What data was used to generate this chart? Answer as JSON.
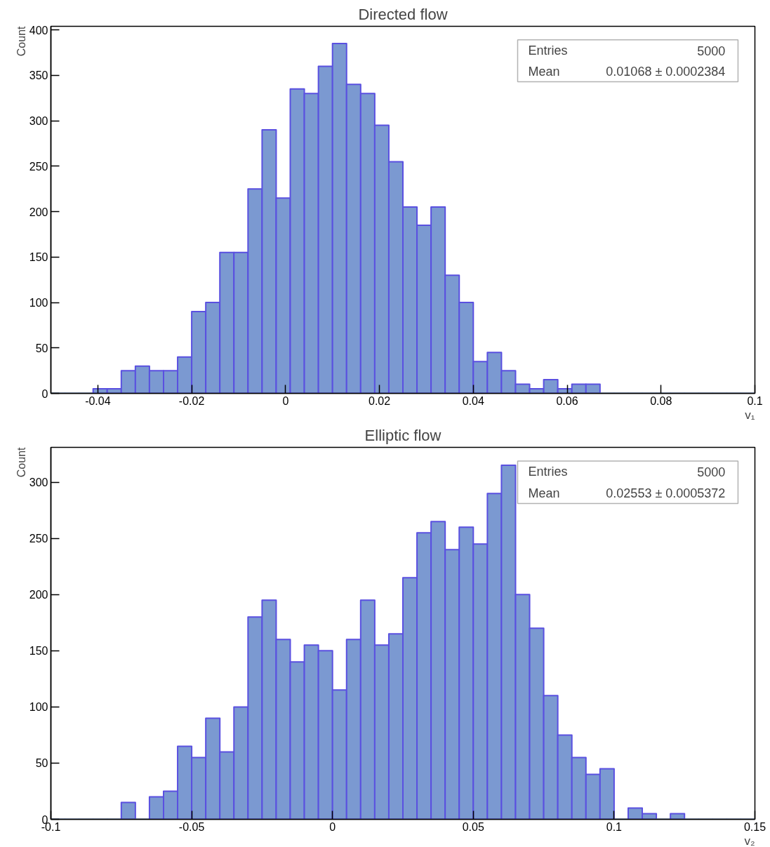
{
  "chart_data": [
    {
      "type": "histogram",
      "title": "Directed flow",
      "xlabel": "v₁",
      "ylabel": "Count",
      "color": "#7b99d1",
      "bins": [
        -0.05,
        -0.047,
        -0.044,
        -0.041,
        -0.038,
        -0.035,
        -0.032,
        -0.029,
        -0.026,
        -0.023,
        -0.02,
        -0.017,
        -0.014,
        -0.011,
        -0.008,
        -0.005,
        -0.002,
        0.001,
        0.004,
        0.007,
        0.01,
        0.013,
        0.016,
        0.019,
        0.022,
        0.025,
        0.028,
        0.031,
        0.034,
        0.037,
        0.04,
        0.043,
        0.046,
        0.049,
        0.052,
        0.055,
        0.058,
        0.061,
        0.064,
        0.067,
        0.07,
        0.073,
        0.076,
        0.079,
        0.082,
        0.085,
        0.088,
        0.091,
        0.094,
        0.097,
        0.1
      ],
      "values": [
        0,
        0,
        0,
        5,
        5,
        25,
        30,
        25,
        25,
        40,
        90,
        100,
        155,
        155,
        225,
        290,
        215,
        335,
        330,
        360,
        385,
        340,
        330,
        295,
        255,
        205,
        185,
        205,
        130,
        100,
        35,
        45,
        25,
        10,
        5,
        15,
        5,
        10,
        10,
        0,
        0,
        0,
        0,
        0,
        0,
        0,
        0,
        0,
        0,
        0
      ],
      "xlim": [
        -0.05,
        0.1
      ],
      "ylim": [
        0,
        404
      ],
      "xticks": [
        -0.04,
        -0.02,
        0,
        0.02,
        0.04,
        0.06,
        0.08,
        0.1
      ],
      "yticks": [
        0,
        50,
        100,
        150,
        200,
        250,
        300,
        350,
        400
      ],
      "annotations": [
        "Entries",
        "5000",
        "Mean",
        "0.01068 ± 0.0002384"
      ]
    },
    {
      "type": "histogram",
      "title": "Elliptic flow",
      "xlabel": "v₂",
      "ylabel": "Count",
      "color": "#7b99d1",
      "bins": [
        -0.1,
        -0.095,
        -0.09,
        -0.085,
        -0.08,
        -0.075,
        -0.07,
        -0.065,
        -0.06,
        -0.055,
        -0.05,
        -0.045,
        -0.04,
        -0.035,
        -0.03,
        -0.025,
        -0.02,
        -0.015,
        -0.01,
        -0.005,
        0,
        0.005,
        0.01,
        0.015,
        0.02,
        0.025,
        0.03,
        0.035,
        0.04,
        0.045,
        0.05,
        0.055,
        0.06,
        0.065,
        0.07,
        0.075,
        0.08,
        0.085,
        0.09,
        0.095,
        0.1,
        0.105,
        0.11,
        0.115,
        0.12,
        0.125,
        0.13,
        0.135,
        0.14,
        0.145,
        0.15
      ],
      "values": [
        0,
        0,
        0,
        0,
        0,
        15,
        0,
        20,
        25,
        65,
        55,
        90,
        60,
        100,
        180,
        195,
        160,
        140,
        155,
        150,
        115,
        160,
        195,
        155,
        165,
        215,
        255,
        265,
        240,
        260,
        245,
        290,
        315,
        200,
        170,
        110,
        75,
        55,
        40,
        45,
        0,
        10,
        5,
        0,
        5,
        0,
        0,
        0,
        0,
        0
      ],
      "xlim": [
        -0.1,
        0.15
      ],
      "ylim": [
        0,
        331
      ],
      "xticks": [
        -0.1,
        -0.05,
        0,
        0.05,
        0.1,
        0.15
      ],
      "yticks": [
        0,
        50,
        100,
        150,
        200,
        250,
        300
      ],
      "annotations": [
        "Entries",
        "5000",
        "Mean",
        "0.02553 ± 0.0005372"
      ]
    }
  ]
}
